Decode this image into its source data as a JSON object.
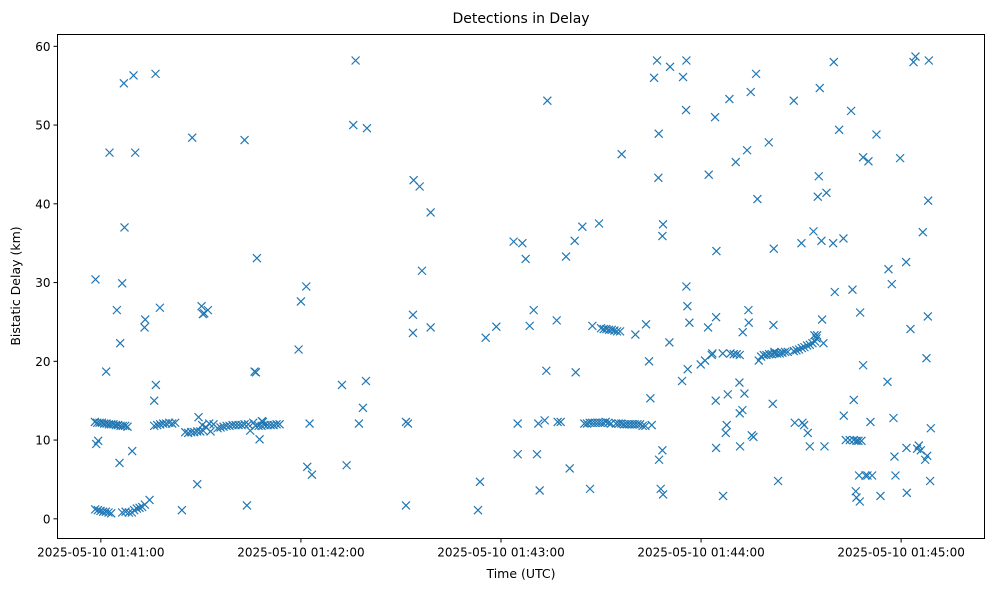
{
  "chart_data": {
    "type": "scatter",
    "title": "Detections in Delay",
    "xlabel": "Time (UTC)",
    "ylabel": "Bistatic Delay (km)",
    "marker": "x",
    "color": "#1f77b4",
    "grid": false,
    "legend": "none",
    "x_unit": "seconds after 2025-05-10 01:40:00 UTC",
    "xlim": [
      47,
      325
    ],
    "ylim": [
      -2.5,
      61.5
    ],
    "xticks": [
      60,
      120,
      180,
      240,
      300
    ],
    "xtick_labels": [
      "2025-05-10 01:41:00",
      "2025-05-10 01:42:00",
      "2025-05-10 01:43:00",
      "2025-05-10 01:44:00",
      "2025-05-10 01:45:00"
    ],
    "yticks": [
      0,
      10,
      20,
      30,
      40,
      50,
      60
    ],
    "ytick_labels": [
      "0",
      "10",
      "20",
      "30",
      "40",
      "50",
      "60"
    ],
    "points": [
      [
        58.3,
        1.2
      ],
      [
        59.1,
        1.1
      ],
      [
        59.9,
        1.0
      ],
      [
        60.7,
        0.9
      ],
      [
        61.5,
        0.9
      ],
      [
        62.3,
        0.8
      ],
      [
        63.1,
        0.7
      ],
      [
        66.4,
        0.8
      ],
      [
        67.4,
        0.9
      ],
      [
        68.4,
        0.8
      ],
      [
        69.3,
        0.8
      ],
      [
        70.0,
        1.1
      ],
      [
        70.8,
        1.3
      ],
      [
        71.6,
        1.4
      ],
      [
        72.4,
        1.5
      ],
      [
        73.2,
        1.8
      ],
      [
        74.6,
        2.4
      ],
      [
        84.3,
        1.1
      ],
      [
        58.2,
        12.3
      ],
      [
        58.9,
        12.2
      ],
      [
        59.6,
        12.2
      ],
      [
        60.3,
        12.2
      ],
      [
        61.0,
        12.1
      ],
      [
        61.7,
        12.1
      ],
      [
        62.4,
        12.0
      ],
      [
        63.1,
        12.0
      ],
      [
        63.8,
        12.0
      ],
      [
        64.5,
        11.9
      ],
      [
        65.2,
        11.9
      ],
      [
        65.9,
        11.8
      ],
      [
        66.6,
        11.8
      ],
      [
        67.3,
        11.8
      ],
      [
        68.0,
        11.7
      ],
      [
        76.0,
        11.8
      ],
      [
        76.9,
        11.9
      ],
      [
        77.8,
        12.0
      ],
      [
        78.7,
        12.1
      ],
      [
        79.6,
        12.1
      ],
      [
        80.5,
        12.2
      ],
      [
        81.4,
        12.1
      ],
      [
        82.3,
        12.2
      ],
      [
        85.3,
        11.0
      ],
      [
        86.2,
        10.9
      ],
      [
        87.1,
        11.0
      ],
      [
        88.0,
        11.0
      ],
      [
        88.9,
        11.1
      ],
      [
        89.8,
        11.1
      ],
      [
        90.7,
        11.2
      ],
      [
        91.6,
        11.6
      ],
      [
        92.5,
        12.1
      ],
      [
        95.0,
        11.5
      ],
      [
        95.9,
        11.6
      ],
      [
        96.8,
        11.7
      ],
      [
        97.7,
        11.8
      ],
      [
        98.6,
        11.8
      ],
      [
        99.5,
        11.9
      ],
      [
        100.4,
        11.9
      ],
      [
        101.3,
        11.9
      ],
      [
        102.2,
        11.9
      ],
      [
        103.1,
        12.0
      ],
      [
        106.4,
        11.8
      ],
      [
        107.3,
        11.8
      ],
      [
        108.2,
        11.8
      ],
      [
        109.1,
        11.9
      ],
      [
        110.0,
        11.9
      ],
      [
        110.9,
        11.9
      ],
      [
        111.8,
        11.9
      ],
      [
        112.7,
        12.0
      ],
      [
        113.6,
        12.0
      ],
      [
        58.4,
        30.4
      ],
      [
        58.6,
        9.5
      ],
      [
        59.2,
        9.9
      ],
      [
        61.6,
        18.7
      ],
      [
        62.6,
        46.5
      ],
      [
        64.8,
        26.5
      ],
      [
        65.6,
        7.1
      ],
      [
        65.8,
        22.3
      ],
      [
        66.4,
        29.9
      ],
      [
        66.9,
        55.3
      ],
      [
        67.1,
        37.0
      ],
      [
        69.4,
        8.6
      ],
      [
        69.8,
        56.3
      ],
      [
        70.3,
        46.5
      ],
      [
        73.1,
        24.3
      ],
      [
        73.3,
        25.3
      ],
      [
        76.0,
        15.0
      ],
      [
        76.5,
        17.0
      ],
      [
        77.7,
        26.8
      ],
      [
        76.4,
        56.5
      ],
      [
        87.4,
        48.4
      ],
      [
        88.9,
        4.4
      ],
      [
        89.3,
        12.9
      ],
      [
        90.2,
        27.0
      ],
      [
        90.6,
        26.0
      ],
      [
        91.0,
        26.1
      ],
      [
        92.1,
        26.5
      ],
      [
        92.9,
        11.1
      ],
      [
        93.8,
        12.0
      ],
      [
        90.4,
        11.9
      ],
      [
        103.1,
        48.1
      ],
      [
        103.8,
        1.7
      ],
      [
        104.2,
        12.0
      ],
      [
        104.8,
        11.2
      ],
      [
        105.7,
        12.2
      ],
      [
        106.1,
        18.7
      ],
      [
        106.5,
        18.6
      ],
      [
        106.8,
        33.1
      ],
      [
        107.6,
        10.1
      ],
      [
        108.3,
        12.4
      ],
      [
        108.6,
        12.3
      ],
      [
        119.3,
        21.5
      ],
      [
        120.0,
        27.6
      ],
      [
        121.6,
        29.5
      ],
      [
        121.9,
        6.6
      ],
      [
        122.6,
        12.1
      ],
      [
        123.3,
        5.6
      ],
      [
        132.3,
        17.0
      ],
      [
        133.7,
        6.8
      ],
      [
        135.7,
        50.0
      ],
      [
        136.4,
        58.2
      ],
      [
        137.4,
        12.1
      ],
      [
        138.6,
        14.1
      ],
      [
        139.5,
        17.5
      ],
      [
        139.8,
        49.6
      ],
      [
        151.5,
        1.7
      ],
      [
        151.5,
        12.3
      ],
      [
        152.1,
        12.1
      ],
      [
        153.6,
        23.6
      ],
      [
        153.6,
        25.9
      ],
      [
        153.8,
        43.0
      ],
      [
        155.6,
        42.2
      ],
      [
        156.3,
        31.5
      ],
      [
        158.9,
        24.3
      ],
      [
        158.9,
        38.9
      ],
      [
        173.1,
        1.1
      ],
      [
        173.7,
        4.7
      ],
      [
        175.4,
        23.0
      ],
      [
        178.6,
        24.4
      ],
      [
        183.8,
        35.2
      ],
      [
        185.0,
        8.2
      ],
      [
        185.0,
        12.1
      ],
      [
        186.4,
        35.0
      ],
      [
        187.4,
        33.0
      ],
      [
        188.6,
        24.5
      ],
      [
        189.8,
        26.5
      ],
      [
        190.8,
        8.2
      ],
      [
        191.2,
        12.1
      ],
      [
        191.6,
        3.6
      ],
      [
        193.1,
        12.5
      ],
      [
        193.6,
        18.8
      ],
      [
        193.9,
        53.1
      ],
      [
        196.7,
        25.2
      ],
      [
        197.0,
        12.3
      ],
      [
        197.9,
        12.3
      ],
      [
        199.5,
        33.3
      ],
      [
        200.6,
        6.4
      ],
      [
        202.1,
        35.3
      ],
      [
        202.4,
        18.6
      ],
      [
        204.4,
        37.1
      ],
      [
        206.7,
        3.8
      ],
      [
        207.4,
        24.5
      ],
      [
        209.4,
        37.5
      ],
      [
        205.0,
        12.1
      ],
      [
        205.8,
        12.1
      ],
      [
        206.6,
        12.2
      ],
      [
        207.4,
        12.2
      ],
      [
        208.2,
        12.2
      ],
      [
        209.0,
        12.2
      ],
      [
        209.8,
        12.2
      ],
      [
        210.6,
        12.2
      ],
      [
        211.4,
        12.3
      ],
      [
        212.2,
        12.2
      ],
      [
        213.0,
        12.1
      ],
      [
        214.5,
        12.1
      ],
      [
        215.3,
        12.1
      ],
      [
        216.1,
        12.1
      ],
      [
        216.9,
        12.0
      ],
      [
        217.7,
        12.0
      ],
      [
        218.5,
        12.0
      ],
      [
        219.3,
        12.0
      ],
      [
        220.1,
        12.0
      ],
      [
        220.9,
        12.0
      ],
      [
        221.7,
        12.0
      ],
      [
        222.5,
        11.8
      ],
      [
        223.3,
        11.8
      ],
      [
        225.2,
        11.9
      ],
      [
        210.0,
        24.2
      ],
      [
        210.8,
        24.1
      ],
      [
        211.6,
        24.1
      ],
      [
        212.4,
        24.0
      ],
      [
        213.2,
        24.0
      ],
      [
        214.0,
        23.9
      ],
      [
        214.8,
        23.8
      ],
      [
        215.7,
        23.8
      ],
      [
        216.2,
        46.3
      ],
      [
        220.3,
        23.4
      ],
      [
        223.5,
        24.7
      ],
      [
        224.4,
        20.0
      ],
      [
        224.8,
        15.3
      ],
      [
        225.9,
        56.0
      ],
      [
        226.8,
        58.2
      ],
      [
        227.3,
        48.9
      ],
      [
        227.2,
        43.3
      ],
      [
        227.4,
        7.5
      ],
      [
        227.9,
        3.8
      ],
      [
        228.4,
        8.7
      ],
      [
        228.6,
        3.1
      ],
      [
        228.4,
        35.9
      ],
      [
        228.6,
        37.4
      ],
      [
        230.5,
        22.4
      ],
      [
        230.7,
        57.4
      ],
      [
        234.3,
        17.5
      ],
      [
        234.6,
        56.1
      ],
      [
        235.5,
        51.9
      ],
      [
        235.6,
        58.2
      ],
      [
        235.6,
        29.5
      ],
      [
        235.9,
        27.0
      ],
      [
        236.0,
        19.0
      ],
      [
        236.5,
        24.9
      ],
      [
        239.9,
        19.6
      ],
      [
        241.2,
        20.1
      ],
      [
        242.1,
        24.3
      ],
      [
        242.3,
        43.7
      ],
      [
        243.2,
        20.8
      ],
      [
        243.4,
        21.0
      ],
      [
        244.2,
        51.0
      ],
      [
        244.4,
        15.0
      ],
      [
        244.5,
        9.0
      ],
      [
        244.5,
        25.6
      ],
      [
        244.6,
        34.0
      ],
      [
        246.5,
        21.0
      ],
      [
        246.6,
        2.9
      ],
      [
        247.4,
        10.9
      ],
      [
        247.7,
        11.9
      ],
      [
        248.0,
        15.8
      ],
      [
        248.5,
        53.3
      ],
      [
        248.8,
        21.0
      ],
      [
        249.8,
        20.9
      ],
      [
        250.7,
        20.9
      ],
      [
        251.6,
        20.8
      ],
      [
        250.4,
        45.3
      ],
      [
        251.5,
        17.3
      ],
      [
        251.6,
        13.4
      ],
      [
        251.7,
        9.2
      ],
      [
        252.4,
        13.8
      ],
      [
        252.5,
        23.7
      ],
      [
        253.0,
        15.9
      ],
      [
        253.8,
        46.8
      ],
      [
        254.2,
        26.5
      ],
      [
        254.3,
        24.9
      ],
      [
        254.9,
        54.2
      ],
      [
        255.2,
        10.6
      ],
      [
        255.7,
        10.4
      ],
      [
        256.5,
        56.5
      ],
      [
        256.9,
        40.6
      ],
      [
        257.3,
        20.1
      ],
      [
        260.3,
        47.8
      ],
      [
        261.5,
        14.6
      ],
      [
        261.7,
        24.6
      ],
      [
        261.8,
        34.3
      ],
      [
        262.0,
        21.2
      ],
      [
        263.1,
        4.8
      ],
      [
        258.0,
        20.6
      ],
      [
        258.8,
        20.8
      ],
      [
        259.6,
        20.8
      ],
      [
        260.4,
        20.9
      ],
      [
        261.2,
        20.9
      ],
      [
        262.0,
        21.0
      ],
      [
        262.8,
        21.0
      ],
      [
        263.6,
        21.0
      ],
      [
        264.4,
        21.1
      ],
      [
        265.2,
        21.2
      ],
      [
        266.0,
        21.2
      ],
      [
        267.8,
        21.3
      ],
      [
        268.6,
        21.4
      ],
      [
        269.4,
        21.5
      ],
      [
        270.2,
        21.7
      ],
      [
        271.0,
        21.8
      ],
      [
        271.8,
        22.0
      ],
      [
        272.6,
        22.1
      ],
      [
        273.4,
        22.3
      ],
      [
        274.2,
        22.5
      ],
      [
        274.6,
        22.9
      ],
      [
        274.8,
        23.3
      ],
      [
        267.8,
        53.1
      ],
      [
        268.1,
        12.2
      ],
      [
        270.1,
        35.0
      ],
      [
        270.4,
        12.2
      ],
      [
        270.9,
        11.9
      ],
      [
        272.0,
        10.9
      ],
      [
        272.6,
        9.2
      ],
      [
        273.7,
        36.5
      ],
      [
        274.0,
        23.3
      ],
      [
        275.0,
        40.9
      ],
      [
        275.3,
        43.5
      ],
      [
        275.6,
        54.7
      ],
      [
        276.1,
        35.3
      ],
      [
        276.3,
        25.3
      ],
      [
        276.7,
        22.3
      ],
      [
        277.0,
        9.2
      ],
      [
        277.6,
        41.4
      ],
      [
        279.6,
        35.0
      ],
      [
        279.8,
        58.0
      ],
      [
        280.1,
        28.8
      ],
      [
        281.4,
        49.4
      ],
      [
        282.7,
        35.6
      ],
      [
        282.8,
        13.1
      ],
      [
        283.4,
        10.0
      ],
      [
        284.6,
        10.0
      ],
      [
        285.0,
        51.8
      ],
      [
        285.4,
        29.1
      ],
      [
        285.8,
        15.1
      ],
      [
        285.8,
        10.0
      ],
      [
        286.4,
        3.5
      ],
      [
        286.6,
        2.7
      ],
      [
        286.6,
        9.9
      ],
      [
        287.2,
        9.9
      ],
      [
        287.4,
        5.5
      ],
      [
        287.6,
        2.2
      ],
      [
        287.7,
        26.2
      ],
      [
        288.1,
        9.9
      ],
      [
        288.6,
        45.9
      ],
      [
        288.6,
        19.5
      ],
      [
        289.3,
        5.5
      ],
      [
        289.9,
        5.5
      ],
      [
        290.2,
        45.4
      ],
      [
        290.8,
        12.3
      ],
      [
        291.3,
        5.5
      ],
      [
        292.6,
        48.8
      ],
      [
        293.8,
        2.9
      ],
      [
        295.9,
        17.4
      ],
      [
        296.2,
        31.7
      ],
      [
        297.2,
        29.8
      ],
      [
        297.7,
        12.8
      ],
      [
        298.0,
        7.9
      ],
      [
        298.3,
        5.5
      ],
      [
        299.7,
        45.8
      ],
      [
        301.5,
        32.6
      ],
      [
        301.6,
        9.0
      ],
      [
        301.7,
        3.3
      ],
      [
        302.8,
        24.1
      ],
      [
        303.7,
        58.0
      ],
      [
        304.3,
        58.7
      ],
      [
        304.8,
        8.9
      ],
      [
        305.3,
        9.3
      ],
      [
        305.9,
        8.7
      ],
      [
        306.5,
        36.4
      ],
      [
        307.2,
        7.5
      ],
      [
        307.6,
        20.4
      ],
      [
        307.8,
        8.0
      ],
      [
        308.0,
        25.7
      ],
      [
        308.1,
        40.4
      ],
      [
        308.3,
        58.2
      ],
      [
        308.9,
        11.5
      ],
      [
        308.7,
        4.8
      ]
    ]
  }
}
